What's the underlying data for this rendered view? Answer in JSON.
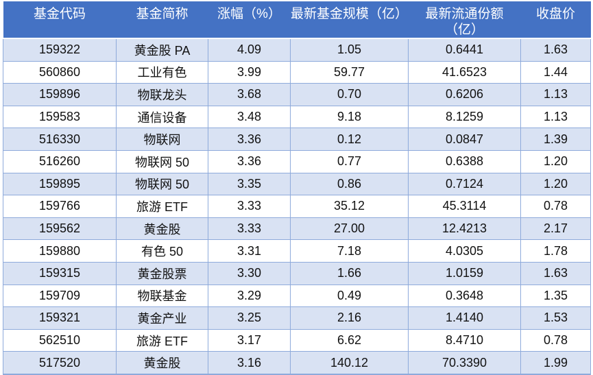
{
  "table": {
    "columns": [
      {
        "label": "基金代码"
      },
      {
        "label": "基金简称"
      },
      {
        "label": "涨幅（%）"
      },
      {
        "label": "最新基金规模（亿）"
      },
      {
        "label": "最新流通份额",
        "label_line2": "（亿）"
      },
      {
        "label": "收盘价"
      }
    ],
    "rows": [
      {
        "cells": [
          "159322",
          "黄金股 PA",
          "4.09",
          "1.05",
          "0.6441",
          "1.63"
        ]
      },
      {
        "cells": [
          "560860",
          "工业有色",
          "3.99",
          "59.77",
          "41.6523",
          "1.44"
        ]
      },
      {
        "cells": [
          "159896",
          "物联龙头",
          "3.68",
          "0.70",
          "0.6206",
          "1.13"
        ]
      },
      {
        "cells": [
          "159583",
          "通信设备",
          "3.48",
          "9.18",
          "8.1259",
          "1.13"
        ]
      },
      {
        "cells": [
          "516330",
          "物联网",
          "3.36",
          "0.12",
          "0.0847",
          "1.39"
        ]
      },
      {
        "cells": [
          "516260",
          "物联网 50",
          "3.36",
          "0.77",
          "0.6388",
          "1.20"
        ]
      },
      {
        "cells": [
          "159895",
          "物联网 50",
          "3.35",
          "0.86",
          "0.7124",
          "1.20"
        ]
      },
      {
        "cells": [
          "159766",
          "旅游 ETF",
          "3.33",
          "35.12",
          "45.3114",
          "0.78"
        ]
      },
      {
        "cells": [
          "159562",
          "黄金股",
          "3.33",
          "27.00",
          "12.4213",
          "2.17"
        ]
      },
      {
        "cells": [
          "159880",
          "有色 50",
          "3.31",
          "7.18",
          "4.0305",
          "1.78"
        ]
      },
      {
        "cells": [
          "159315",
          "黄金股票",
          "3.30",
          "1.66",
          "1.0159",
          "1.63"
        ]
      },
      {
        "cells": [
          "159709",
          "物联基金",
          "3.29",
          "0.49",
          "0.3648",
          "1.35"
        ]
      },
      {
        "cells": [
          "159321",
          "黄金产业",
          "3.25",
          "2.16",
          "1.4140",
          "1.53"
        ]
      },
      {
        "cells": [
          "562510",
          "旅游 ETF",
          "3.17",
          "6.62",
          "8.4710",
          "0.78"
        ]
      },
      {
        "cells": [
          "517520",
          "黄金股",
          "3.16",
          "140.12",
          "70.3390",
          "1.99"
        ]
      }
    ]
  },
  "colors": {
    "header_bg": "#4472C4",
    "header_text": "#FFFFFF",
    "band_row_bg": "#D9E2F3",
    "plain_row_bg": "#FFFFFF",
    "border": "#8EAADB",
    "bottom_border": "#8EAADB",
    "body_text": "#111111"
  }
}
